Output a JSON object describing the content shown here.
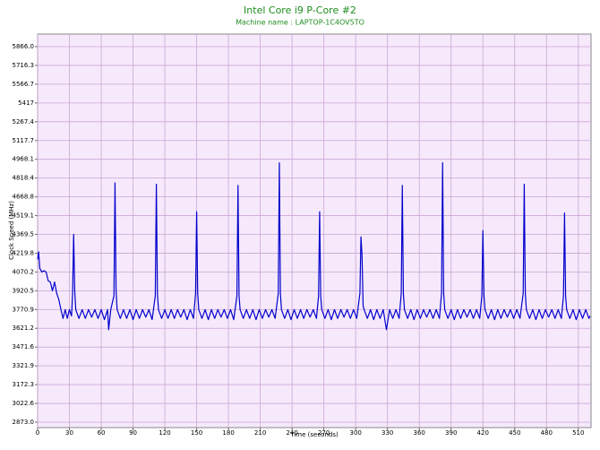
{
  "chart_data": {
    "type": "line",
    "title": "Intel Core i9 P-Core #2",
    "subtitle": "Machine name : LAPTOP-1C4OV5TO",
    "x_label": "Time (seconds)",
    "y_label": "Clock Speed (MHz)",
    "color": "#0000cc",
    "grid": true,
    "xlim": [
      0,
      522
    ],
    "xticks": [
      0,
      30,
      60,
      90,
      120,
      150,
      180,
      210,
      240,
      270,
      300,
      330,
      360,
      390,
      420,
      450,
      480,
      510
    ],
    "ylim": [
      2830,
      5966
    ],
    "yticks": [
      {
        "value": 2873,
        "label": "2873.0"
      },
      3022.6,
      3172.3,
      3321.9,
      3471.6,
      3621.2,
      3770.9,
      3920.5,
      4070.2,
      4219.8,
      4369.5,
      4519.1,
      4668.8,
      4818.4,
      4968.1,
      5117.7,
      5267.4,
      5417,
      5566.7,
      5716.3,
      {
        "value": 5866,
        "label": "5866.0"
      }
    ],
    "x": [
      0,
      1,
      2,
      4,
      6,
      8,
      10,
      12,
      14,
      16,
      18,
      20,
      22,
      24,
      26,
      28,
      30,
      32,
      33,
      34,
      35,
      36,
      39,
      42,
      45,
      48,
      51,
      54,
      57,
      60,
      63,
      66,
      67,
      69,
      72,
      73,
      74,
      75,
      78,
      81,
      84,
      87,
      90,
      93,
      96,
      99,
      102,
      105,
      108,
      111,
      112,
      113,
      114,
      117,
      120,
      123,
      126,
      129,
      132,
      135,
      138,
      141,
      144,
      147,
      149,
      150,
      151,
      152,
      155,
      158,
      161,
      164,
      167,
      170,
      173,
      176,
      179,
      182,
      185,
      188,
      189,
      190,
      191,
      194,
      197,
      200,
      203,
      206,
      209,
      212,
      215,
      218,
      221,
      224,
      227,
      228,
      229,
      230,
      233,
      236,
      239,
      242,
      245,
      248,
      251,
      254,
      257,
      260,
      263,
      265,
      266,
      267,
      268,
      271,
      274,
      277,
      280,
      283,
      286,
      289,
      292,
      295,
      298,
      301,
      304,
      305,
      306,
      307,
      308,
      311,
      314,
      317,
      320,
      323,
      326,
      329,
      332,
      335,
      338,
      341,
      343,
      344,
      345,
      346,
      349,
      352,
      355,
      358,
      361,
      364,
      367,
      370,
      373,
      376,
      379,
      381,
      382,
      383,
      384,
      387,
      390,
      393,
      396,
      399,
      402,
      405,
      408,
      411,
      414,
      417,
      419,
      420,
      421,
      422,
      425,
      428,
      431,
      434,
      437,
      440,
      443,
      446,
      449,
      452,
      455,
      458,
      459,
      460,
      461,
      464,
      467,
      470,
      473,
      476,
      479,
      482,
      485,
      488,
      491,
      494,
      496,
      497,
      498,
      499,
      502,
      505,
      508,
      511,
      514,
      517,
      520,
      521
    ],
    "values": [
      4170,
      4230,
      4100,
      4070,
      4080,
      4070,
      4000,
      3990,
      3920,
      3990,
      3900,
      3850,
      3770,
      3700,
      3770,
      3700,
      3770,
      3720,
      3900,
      4370,
      3920,
      3770,
      3700,
      3770,
      3700,
      3770,
      3710,
      3770,
      3700,
      3770,
      3690,
      3770,
      3610,
      3770,
      3880,
      4780,
      3920,
      3770,
      3700,
      3770,
      3700,
      3770,
      3690,
      3770,
      3700,
      3770,
      3710,
      3770,
      3690,
      3880,
      4770,
      3900,
      3770,
      3700,
      3770,
      3700,
      3770,
      3700,
      3770,
      3710,
      3770,
      3690,
      3770,
      3700,
      3900,
      4550,
      3900,
      3770,
      3700,
      3770,
      3690,
      3770,
      3700,
      3770,
      3710,
      3770,
      3700,
      3770,
      3690,
      3880,
      4760,
      3880,
      3770,
      3700,
      3770,
      3700,
      3770,
      3690,
      3770,
      3700,
      3770,
      3710,
      3770,
      3700,
      3900,
      4940,
      3900,
      3770,
      3700,
      3770,
      3690,
      3770,
      3700,
      3770,
      3700,
      3770,
      3710,
      3770,
      3700,
      3880,
      4550,
      3880,
      3770,
      3700,
      3770,
      3690,
      3770,
      3700,
      3770,
      3710,
      3770,
      3700,
      3770,
      3700,
      3900,
      4350,
      4200,
      3800,
      3770,
      3700,
      3770,
      3690,
      3770,
      3700,
      3770,
      3610,
      3770,
      3700,
      3770,
      3700,
      3900,
      4760,
      3900,
      3770,
      3700,
      3770,
      3690,
      3770,
      3700,
      3770,
      3710,
      3770,
      3700,
      3770,
      3700,
      3900,
      4940,
      3900,
      3770,
      3700,
      3770,
      3690,
      3770,
      3700,
      3770,
      3710,
      3770,
      3700,
      3770,
      3700,
      3880,
      4400,
      3880,
      3770,
      3700,
      3770,
      3690,
      3770,
      3700,
      3770,
      3710,
      3770,
      3700,
      3770,
      3700,
      3900,
      4770,
      3900,
      3770,
      3700,
      3770,
      3690,
      3770,
      3700,
      3770,
      3710,
      3770,
      3700,
      3770,
      3700,
      3880,
      4540,
      3880,
      3770,
      3700,
      3770,
      3690,
      3770,
      3700,
      3770,
      3700,
      3720
    ]
  }
}
